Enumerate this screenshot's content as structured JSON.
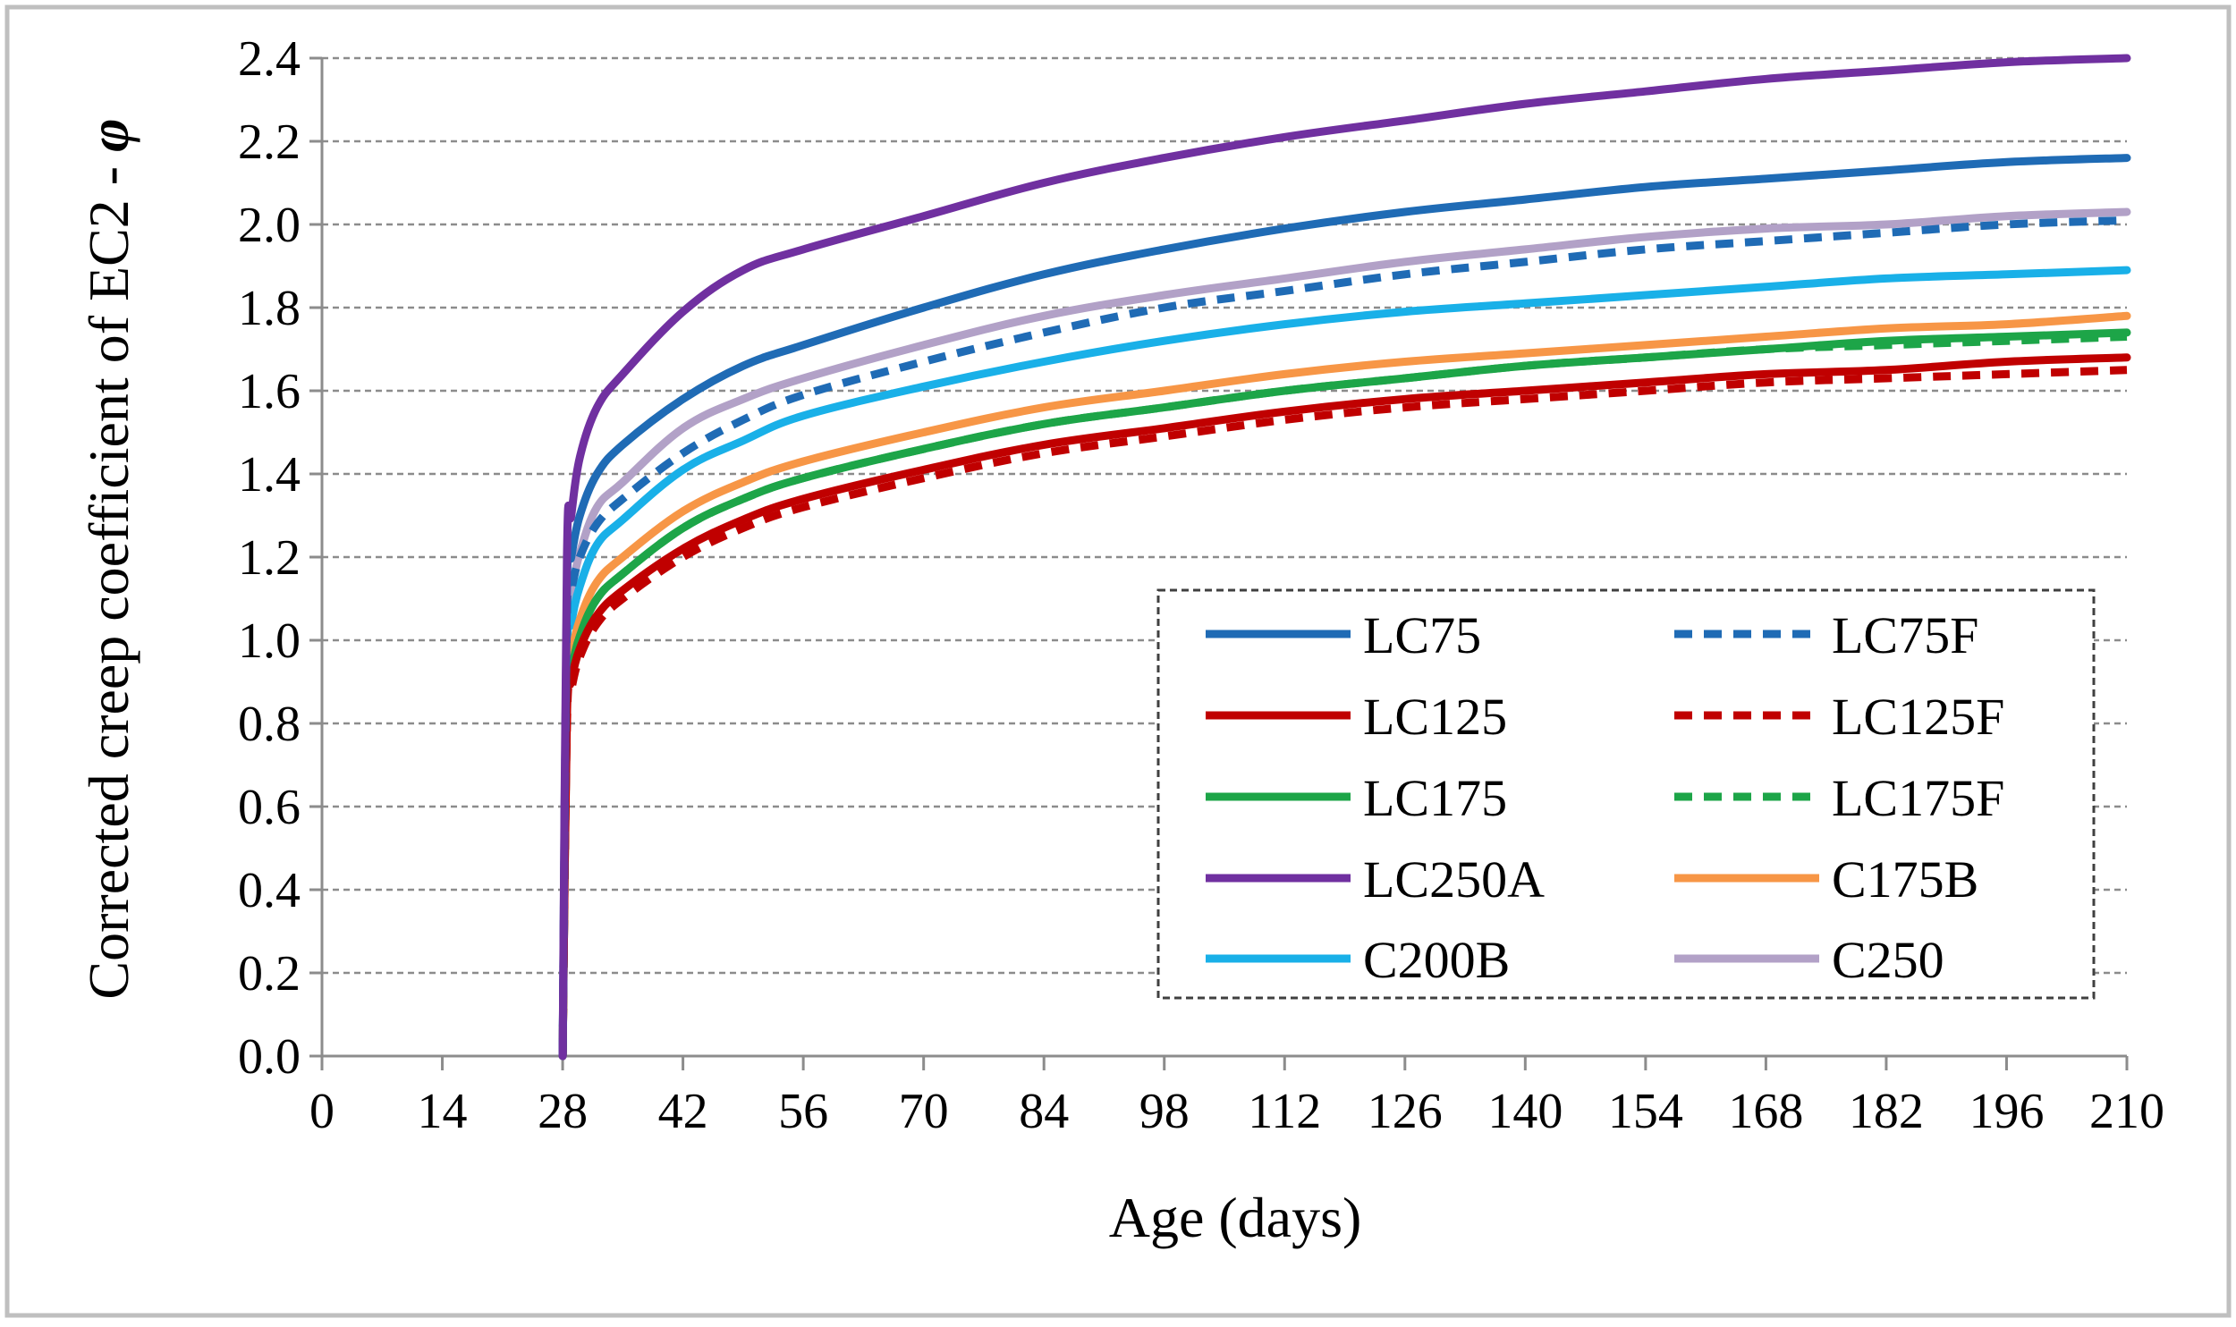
{
  "chart_data": {
    "type": "line",
    "title": "",
    "xlabel": "Age (days)",
    "ylabel_main": "Corrected creep coefficient of EC2 - ",
    "ylabel_symbol": "φ",
    "xlim": [
      0,
      210
    ],
    "ylim": [
      0,
      2.4
    ],
    "x_ticks": [
      "0",
      "14",
      "28",
      "42",
      "56",
      "70",
      "84",
      "98",
      "112",
      "126",
      "140",
      "154",
      "168",
      "182",
      "196",
      "210"
    ],
    "y_ticks": [
      "0.0",
      "0.2",
      "0.4",
      "0.6",
      "0.8",
      "1.0",
      "1.2",
      "1.4",
      "1.6",
      "1.8",
      "2.0",
      "2.2",
      "2.4"
    ],
    "grid": "horizontal dashed",
    "legend_position": "bottom-right",
    "x": [
      28,
      28.5,
      29,
      30,
      32,
      35,
      42,
      49,
      56,
      70,
      84,
      98,
      112,
      126,
      140,
      154,
      168,
      182,
      196,
      210
    ],
    "series": [
      {
        "name": "LC75",
        "color": "#1F6BB5",
        "dash": "solid",
        "values": [
          0,
          1.12,
          1.2,
          1.3,
          1.4,
          1.47,
          1.58,
          1.66,
          1.71,
          1.8,
          1.88,
          1.94,
          1.99,
          2.03,
          2.06,
          2.09,
          2.11,
          2.13,
          2.15,
          2.16
        ]
      },
      {
        "name": "LC75F",
        "color": "#1F6BB5",
        "dash": "dashed",
        "values": [
          0,
          1.05,
          1.12,
          1.2,
          1.28,
          1.34,
          1.45,
          1.53,
          1.59,
          1.67,
          1.74,
          1.8,
          1.84,
          1.88,
          1.91,
          1.94,
          1.96,
          1.98,
          2.0,
          2.01
        ]
      },
      {
        "name": "LC125",
        "color": "#C00000",
        "dash": "solid",
        "values": [
          0,
          0.82,
          0.9,
          0.98,
          1.06,
          1.12,
          1.22,
          1.29,
          1.34,
          1.41,
          1.47,
          1.51,
          1.55,
          1.58,
          1.6,
          1.62,
          1.64,
          1.65,
          1.67,
          1.68
        ]
      },
      {
        "name": "LC125F",
        "color": "#C00000",
        "dash": "dashed",
        "values": [
          0,
          0.8,
          0.88,
          0.96,
          1.04,
          1.1,
          1.2,
          1.27,
          1.32,
          1.39,
          1.45,
          1.49,
          1.53,
          1.56,
          1.58,
          1.6,
          1.62,
          1.63,
          1.64,
          1.65
        ]
      },
      {
        "name": "LC175",
        "color": "#1DA548",
        "dash": "solid",
        "values": [
          0,
          0.84,
          0.92,
          1.01,
          1.1,
          1.16,
          1.27,
          1.34,
          1.39,
          1.46,
          1.52,
          1.56,
          1.6,
          1.63,
          1.66,
          1.68,
          1.7,
          1.72,
          1.73,
          1.74
        ]
      },
      {
        "name": "LC175F",
        "color": "#1DA548",
        "dash": "dashed",
        "values": [
          0,
          0.84,
          0.92,
          1.01,
          1.1,
          1.16,
          1.27,
          1.34,
          1.39,
          1.46,
          1.52,
          1.56,
          1.6,
          1.63,
          1.66,
          1.68,
          1.7,
          1.71,
          1.72,
          1.73
        ]
      },
      {
        "name": "LC250A",
        "color": "#7030A0",
        "dash": "solid",
        "values": [
          0,
          1.2,
          1.3,
          1.44,
          1.56,
          1.64,
          1.79,
          1.89,
          1.94,
          2.02,
          2.1,
          2.16,
          2.21,
          2.25,
          2.29,
          2.32,
          2.35,
          2.37,
          2.39,
          2.4
        ]
      },
      {
        "name": "C175B",
        "color": "#F79646",
        "dash": "solid",
        "values": [
          0,
          0.88,
          0.96,
          1.05,
          1.14,
          1.2,
          1.31,
          1.38,
          1.43,
          1.5,
          1.56,
          1.6,
          1.64,
          1.67,
          1.69,
          1.71,
          1.73,
          1.75,
          1.76,
          1.78
        ]
      },
      {
        "name": "C200B",
        "color": "#19B0E8",
        "dash": "solid",
        "values": [
          0,
          0.95,
          1.04,
          1.13,
          1.23,
          1.29,
          1.41,
          1.48,
          1.54,
          1.61,
          1.67,
          1.72,
          1.76,
          1.79,
          1.81,
          1.83,
          1.85,
          1.87,
          1.88,
          1.89
        ]
      },
      {
        "name": "C250",
        "color": "#B2A1C7",
        "dash": "solid",
        "values": [
          0,
          1.02,
          1.11,
          1.21,
          1.32,
          1.38,
          1.51,
          1.58,
          1.63,
          1.71,
          1.78,
          1.83,
          1.87,
          1.91,
          1.94,
          1.97,
          1.99,
          2.0,
          2.02,
          2.03
        ]
      }
    ]
  }
}
